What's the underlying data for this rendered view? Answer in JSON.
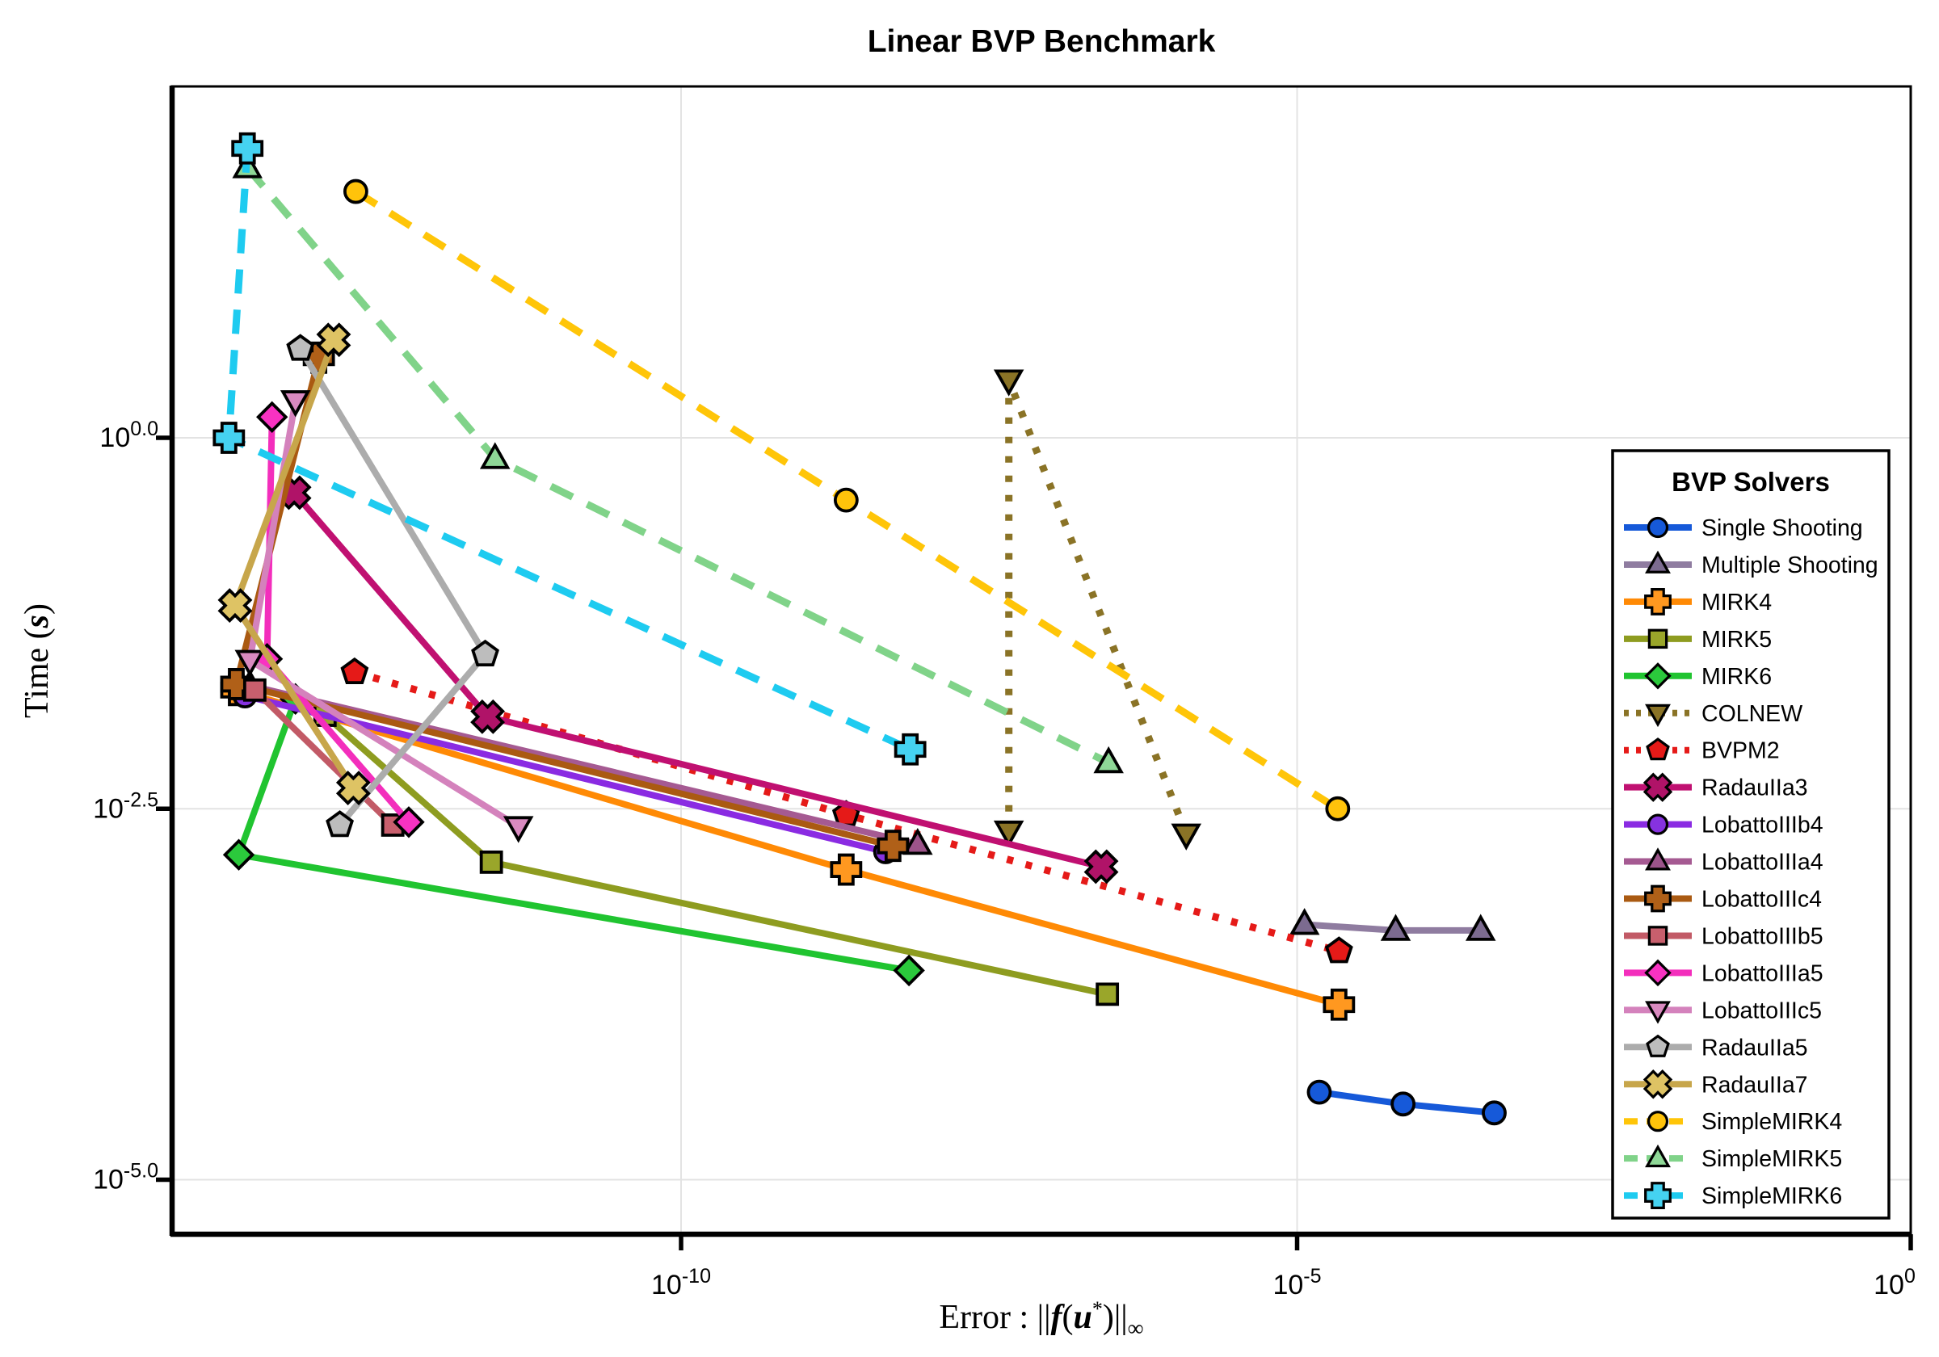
{
  "title": "Linear BVP Benchmark",
  "axes": {
    "xlabel": {
      "text": "Error : ||f(u*)||_inf",
      "parts": [
        {
          "t": "Error :  ",
          "s": "up"
        },
        {
          "t": "||",
          "s": "up"
        },
        {
          "t": "f",
          "s": "bi"
        },
        {
          "t": "(",
          "s": "up"
        },
        {
          "t": "u",
          "s": "bi"
        },
        {
          "t": "*",
          "s": "sup"
        },
        {
          "t": ")||",
          "s": "up"
        },
        {
          "t": "∞",
          "s": "sub"
        }
      ]
    },
    "ylabel": {
      "text": "Time (s)",
      "parts": [
        {
          "t": "Time (",
          "s": "up"
        },
        {
          "t": "s",
          "s": "bi"
        },
        {
          "t": ")",
          "s": "up"
        }
      ]
    },
    "x_ticks": [
      {
        "base": "10",
        "exp": "-10",
        "value": -10
      },
      {
        "base": "10",
        "exp": "-5",
        "value": -5
      },
      {
        "base": "10",
        "exp": "0",
        "value": 0
      }
    ],
    "y_ticks": [
      {
        "base": "10",
        "exp": "0.0",
        "value": 0
      },
      {
        "base": "10",
        "exp": "-2.5",
        "value": -2.5
      },
      {
        "base": "10",
        "exp": "-5.0",
        "value": -5
      }
    ],
    "grid_color": "#e3e3e3",
    "spine_color": "#000000"
  },
  "legend": {
    "title": "BVP Solvers"
  },
  "chart_data": {
    "type": "line",
    "title": "Linear BVP Benchmark",
    "xlabel": "Error : ||f(u*)||_inf",
    "ylabel": "Time (s)",
    "xscale": "log10",
    "yscale": "log10",
    "xlim_exp": [
      -14.3,
      0
    ],
    "ylim_exp": [
      -5.37,
      2.37
    ],
    "grid": true,
    "legend_position": "right",
    "note": "points are [log10(error), log10(time_seconds)]",
    "series": [
      {
        "name": "Single Shooting",
        "color": "#1659d9",
        "marker_fill": "#1659d9",
        "linestyle": "solid",
        "marker": "circle",
        "points": [
          [
            -4.82,
            -4.41
          ],
          [
            -4.14,
            -4.49
          ],
          [
            -3.4,
            -4.55
          ]
        ]
      },
      {
        "name": "Multiple Shooting",
        "color": "#8f7ca0",
        "marker_fill": "#7c6b90",
        "linestyle": "solid",
        "marker": "triangle",
        "points": [
          [
            -4.94,
            -3.28
          ],
          [
            -4.2,
            -3.32
          ],
          [
            -3.51,
            -3.32
          ]
        ]
      },
      {
        "name": "MIRK4",
        "color": "#ff8a05",
        "marker_fill": "#ff9820",
        "linestyle": "solid",
        "marker": "plus",
        "points": [
          [
            -13.61,
            -1.7
          ],
          [
            -8.66,
            -2.91
          ],
          [
            -4.66,
            -3.82
          ]
        ]
      },
      {
        "name": "MIRK5",
        "color": "#8e9c20",
        "marker_fill": "#9aa62a",
        "linestyle": "solid",
        "marker": "square",
        "points": [
          [
            -12.89,
            -1.87
          ],
          [
            -11.54,
            -2.86
          ],
          [
            -6.54,
            -3.75
          ]
        ]
      },
      {
        "name": "MIRK6",
        "color": "#20c430",
        "marker_fill": "#2bc93c",
        "linestyle": "solid",
        "marker": "diamond",
        "points": [
          [
            -13.13,
            -1.76
          ],
          [
            -13.59,
            -2.81
          ],
          [
            -8.15,
            -3.59
          ]
        ]
      },
      {
        "name": "COLNEW",
        "color": "#8a7326",
        "marker_fill": "#8a7326",
        "linestyle": "dotted",
        "marker": "dtriangle",
        "points": [
          [
            -7.34,
            -2.65
          ],
          [
            -7.34,
            0.39
          ],
          [
            -5.9,
            -2.67
          ]
        ]
      },
      {
        "name": "BVPM2",
        "color": "#e51a18",
        "marker_fill": "#e51a18",
        "linestyle": "dotted",
        "marker": "pentagon",
        "points": [
          [
            -12.65,
            -1.58
          ],
          [
            -8.66,
            -2.54
          ],
          [
            -4.66,
            -3.46
          ]
        ]
      },
      {
        "name": "RadauIIa3",
        "color": "#c01071",
        "marker_fill": "#b01368",
        "linestyle": "solid",
        "marker": "xcross",
        "points": [
          [
            -13.14,
            -0.37
          ],
          [
            -11.57,
            -1.88
          ],
          [
            -6.59,
            -2.89
          ]
        ]
      },
      {
        "name": "LobattoIIIb4",
        "color": "#8a2be2",
        "marker_fill": "#8632e0",
        "linestyle": "solid",
        "marker": "circle",
        "points": [
          [
            -13.54,
            -1.74
          ],
          [
            -8.34,
            -2.79
          ]
        ]
      },
      {
        "name": "LobattoIIIa4",
        "color": "#a55a92",
        "marker_fill": "#9c548a",
        "linestyle": "solid",
        "marker": "triangle",
        "points": [
          [
            -13.5,
            -1.67
          ],
          [
            -8.08,
            -2.74
          ]
        ]
      },
      {
        "name": "LobattoIIIc4",
        "color": "#aa5a12",
        "marker_fill": "#b06018",
        "linestyle": "solid",
        "marker": "plus",
        "points": [
          [
            -12.94,
            0.54
          ],
          [
            -13.61,
            -1.66
          ],
          [
            -8.28,
            -2.75
          ]
        ]
      },
      {
        "name": "LobattoIIIb5",
        "color": "#c25a66",
        "marker_fill": "#c85f6d",
        "linestyle": "solid",
        "marker": "square",
        "points": [
          [
            -13.46,
            -1.7
          ],
          [
            -12.34,
            -2.61
          ]
        ]
      },
      {
        "name": "LobattoIIIa5",
        "color": "#f32ebc",
        "marker_fill": "#f832c2",
        "linestyle": "solid",
        "marker": "diamond",
        "points": [
          [
            -13.32,
            0.14
          ],
          [
            -13.36,
            -1.49
          ],
          [
            -12.21,
            -2.59
          ]
        ]
      },
      {
        "name": "LobattoIIIc5",
        "color": "#d482bc",
        "marker_fill": "#d98ac0",
        "linestyle": "solid",
        "marker": "dtriangle",
        "points": [
          [
            -13.13,
            0.25
          ],
          [
            -13.5,
            -1.5
          ],
          [
            -11.32,
            -2.62
          ]
        ]
      },
      {
        "name": "RadauIIa5",
        "color": "#acacac",
        "marker_fill": "#bdbdbd",
        "linestyle": "solid",
        "marker": "pentagon",
        "points": [
          [
            -13.09,
            0.6
          ],
          [
            -11.59,
            -1.46
          ],
          [
            -12.77,
            -2.61
          ]
        ]
      },
      {
        "name": "RadauIIa7",
        "color": "#c7a64b",
        "marker_fill": "#dec364",
        "linestyle": "solid",
        "marker": "xcross",
        "points": [
          [
            -12.82,
            0.66
          ],
          [
            -13.62,
            -1.13
          ],
          [
            -12.66,
            -2.36
          ]
        ]
      },
      {
        "name": "SimpleMIRK4",
        "color": "#ffc508",
        "marker_fill": "#ffc30b",
        "linestyle": "dashed",
        "marker": "circle",
        "points": [
          [
            -12.64,
            1.66
          ],
          [
            -8.66,
            -0.42
          ],
          [
            -4.67,
            -2.5
          ]
        ]
      },
      {
        "name": "SimpleMIRK5",
        "color": "#80d389",
        "marker_fill": "#8fd897",
        "linestyle": "dashed",
        "marker": "triangle",
        "points": [
          [
            -13.52,
            1.82
          ],
          [
            -11.51,
            -0.14
          ],
          [
            -6.53,
            -2.19
          ]
        ]
      },
      {
        "name": "SimpleMIRK6",
        "color": "#1ecbf0",
        "marker_fill": "#45d2f1",
        "linestyle": "dashed",
        "marker": "plus",
        "points": [
          [
            -13.52,
            1.95
          ],
          [
            -13.67,
            0.0
          ],
          [
            -8.14,
            -2.1
          ]
        ]
      }
    ]
  }
}
